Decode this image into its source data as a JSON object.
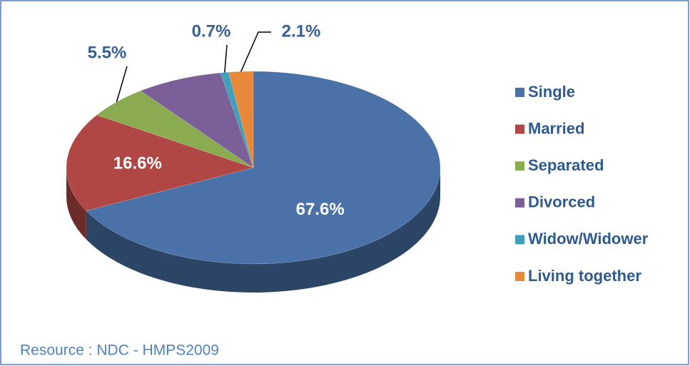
{
  "chart_data": {
    "type": "pie",
    "categories": [
      "Single",
      "Married",
      "Separated",
      "Divorced",
      "Widow/Widower",
      "Living together"
    ],
    "values": [
      67.6,
      16.6,
      5.5,
      7.5,
      0.7,
      2.1
    ],
    "value_labels": [
      "67.6%",
      "16.6%",
      "5.5%",
      null,
      "0.7%",
      "2.1%"
    ],
    "colors": [
      "#4a72a8",
      "#b04744",
      "#8aab4f",
      "#7b5f99",
      "#3fa0bb",
      "#e8883a"
    ],
    "legend": "right",
    "source": "Resource : NDC - HMPS2009"
  }
}
